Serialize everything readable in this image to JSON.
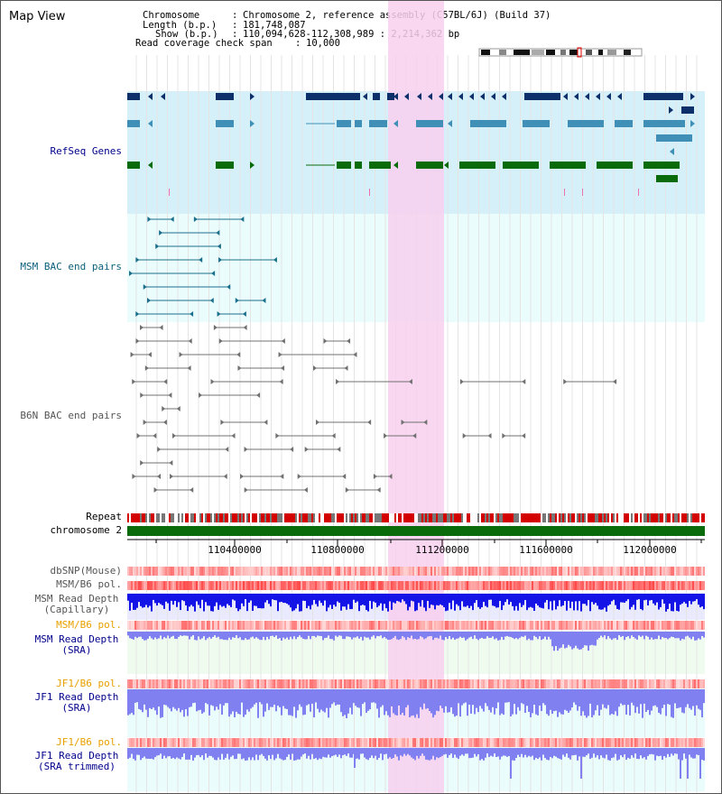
{
  "view_title": "Map View",
  "info": {
    "chromosome_label": "Chromosome",
    "chromosome_value": "Chromosome 2, reference assembly (C57BL/6J) (Build 37)",
    "length_label": "Length (b.p.)",
    "length_value": "181,748,087",
    "show_label": "Show (b.p.)",
    "show_value": "110,094,628-112,308,989 : 2,214,362 bp",
    "coverage_label": "Read coverage check span",
    "coverage_value": "10,000"
  },
  "axis": {
    "start": 110094628,
    "end": 112308989,
    "ticks": [
      "110400000",
      "110800000",
      "111200000",
      "111600000",
      "112000000"
    ]
  },
  "tracks": {
    "refseq": "RefSeq Genes",
    "msm_bac": "MSM BAC end pairs",
    "b6n_bac": "B6N BAC end pairs",
    "repeat": "Repeat",
    "chromosome": "chromosome 2",
    "dbsnp": "dbSNP(Mouse)",
    "msm_b6_pol": "MSM/B6 pol.",
    "msm_depth_cap": "MSM Read Depth\n(Capillary)",
    "msm_b6_pol_sra": "MSM/B6 pol.",
    "msm_depth_sra": "MSM Read Depth\n(SRA)",
    "jf1_b6_pol": "JF1/B6 pol.",
    "jf1_depth_sra": "JF1 Read Depth\n(SRA)",
    "jf1_b6_pol_2": "JF1/B6 pol.",
    "jf1_depth_trim": "JF1 Read Depth\n(SRA trimmed)"
  },
  "colors": {
    "refseq_dark": "#0d2f6a",
    "refseq_mid": "#3f8fb7",
    "refseq_green": "#0a6b0a",
    "refseq_bg": "#d6f0fa",
    "bac_bg": "#eafcfc",
    "msm_bac": "#1a6f8c",
    "b6n_bac": "#707070",
    "highlight": "#f8d0ee",
    "chromosome": "#0a6b0a",
    "label_blue": "#00008b",
    "label_teal": "#0a5f7a",
    "label_gray": "#555555",
    "label_orange": "#e8a000",
    "depth_blue": "#1414e6",
    "depth_light": "#8080f0"
  }
}
